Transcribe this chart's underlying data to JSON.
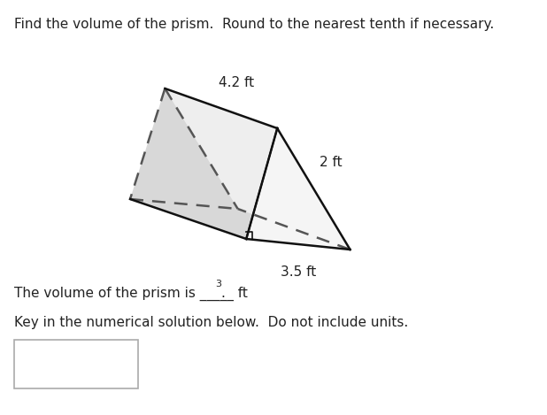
{
  "title_text": "Find the volume of the prism.  Round to the nearest tenth if necessary.",
  "title_fontsize": 11,
  "title_color": "#222222",
  "label_42": "4.2 ft",
  "label_2": "2 ft",
  "label_35": "3.5 ft",
  "sentence1": "The volume of the prism is _____ ft",
  "sentence1_super": "3",
  "sentence2": "Key in the numerical solution below.  Do not include units.",
  "font_size_labels": 11,
  "font_size_sentences": 11,
  "background_color": "#ffffff",
  "prism_edge_color": "#111111",
  "dashed_color": "#555555",
  "face_color_top": "#e0e0e0",
  "face_color_front": "#f2f2f2",
  "face_color_bottom": "#e8e8e8"
}
